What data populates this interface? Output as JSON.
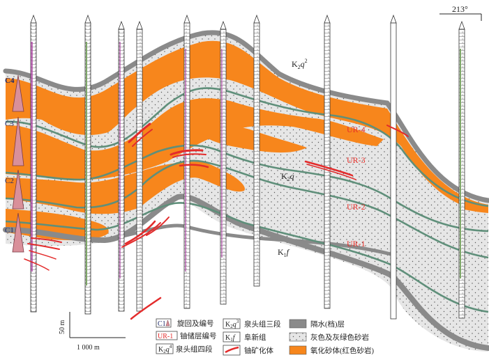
{
  "direction_label": "213°",
  "scale": {
    "vertical": "50 m",
    "horizontal": "1 000 m"
  },
  "cycles": [
    "C4",
    "C3",
    "C2",
    "C1"
  ],
  "ore_layers": [
    "UR-4",
    "UR-3",
    "UR-2",
    "UR-1"
  ],
  "formations": {
    "q2": {
      "main": "K",
      "sub": "2",
      "sup": "q",
      "sup2": "2"
    },
    "q": {
      "main": "K",
      "sub": "2",
      "sup": "q"
    },
    "f": {
      "main": "K",
      "sub": "1",
      "sup": "f"
    }
  },
  "legend": {
    "cycle_label": "旋回及编号",
    "ore_label": "铀储层编号",
    "q4_label": "泉头组四段",
    "q3_label": "泉头组三段",
    "f_label": "阜新组",
    "mineral_label": "铀矿化体",
    "aquitard_label": "隔水(档)层",
    "grey_sand_label": "灰色及灰绿色砂岩",
    "oxid_label": "氧化砂体(红色砂岩)",
    "c1_sample": "C1",
    "ur1_sample": "UR-1",
    "q3_sample": "K",
    "f_sample": "K",
    "q4_sample": "K"
  },
  "colors": {
    "oxidized": "#f7861c",
    "grey_sand": "#e4e4e4",
    "aquitard": "#8a8a8a",
    "green_line": "#5f8f7a",
    "ore": "#e32b2b",
    "cycle_tri": "#d9909a"
  }
}
